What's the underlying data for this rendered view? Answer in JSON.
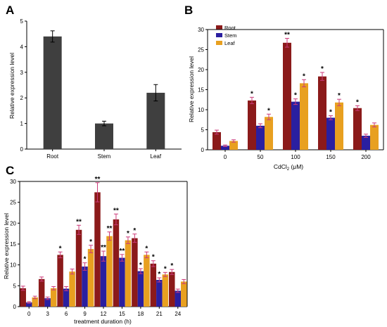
{
  "colors": {
    "root": "#8b1a1a",
    "stem": "#2a1fa0",
    "leaf": "#e8a020",
    "gray": "#3f3f3f",
    "axis": "#000000"
  },
  "chart_data": [
    {
      "panel": "A",
      "type": "bar",
      "categories": [
        "Root",
        "Stem",
        "Leaf"
      ],
      "series": [
        {
          "values": [
            4.4,
            1.0,
            2.2
          ],
          "errors": [
            0.22,
            0.09,
            0.32
          ]
        }
      ],
      "xlabel": "",
      "ylabel": "Relative expression level",
      "ylim": [
        0,
        5
      ],
      "yticks": [
        "0",
        "1",
        "2",
        "3",
        "4",
        "5"
      ],
      "grid": false,
      "legend": "none"
    },
    {
      "panel": "B",
      "type": "bar",
      "categories": [
        "0",
        "50",
        "100",
        "150",
        "200"
      ],
      "series": [
        {
          "name": "Root",
          "values": [
            4.4,
            12.3,
            26.7,
            18.3,
            10.4
          ],
          "errors": [
            0.5,
            0.8,
            1.1,
            1.0,
            0.6
          ],
          "stars": [
            "",
            "*",
            "**",
            "*",
            "*"
          ]
        },
        {
          "name": "Stem",
          "values": [
            1.0,
            6.0,
            12.0,
            8.0,
            3.5
          ],
          "errors": [
            0.2,
            0.5,
            0.7,
            0.5,
            0.4
          ],
          "stars": [
            "",
            "",
            "*",
            "*",
            ""
          ]
        },
        {
          "name": "Leaf",
          "values": [
            2.2,
            8.2,
            16.6,
            11.8,
            6.2
          ],
          "errors": [
            0.3,
            0.7,
            0.9,
            0.8,
            0.5
          ],
          "stars": [
            "",
            "*",
            "*",
            "*",
            ""
          ]
        }
      ],
      "xlabel": "CdCl",
      "xlabel_sub": "2",
      "xlabel_unit": " (μM)",
      "ylabel": "Relative expression level",
      "ylim": [
        0,
        30
      ],
      "yticks": [
        "0",
        "5",
        "10",
        "15",
        "20",
        "25",
        "30"
      ],
      "grid": false,
      "legend": "top-left"
    },
    {
      "panel": "C",
      "type": "bar",
      "categories": [
        "0",
        "3",
        "6",
        "9",
        "12",
        "15",
        "18",
        "21",
        "24"
      ],
      "series": [
        {
          "name": "Root",
          "values": [
            4.4,
            6.6,
            12.4,
            18.4,
            27.4,
            20.9,
            16.4,
            10.3,
            8.3
          ],
          "errors": [
            0.5,
            0.5,
            0.7,
            1.1,
            2.3,
            1.3,
            1.0,
            0.7,
            0.6
          ],
          "stars": [
            "",
            "",
            "*",
            "**",
            "**",
            "**",
            "*",
            "*",
            "*"
          ]
        },
        {
          "name": "Stem",
          "values": [
            1.0,
            2.0,
            4.3,
            9.6,
            12.1,
            11.7,
            8.5,
            6.4,
            3.8
          ],
          "errors": [
            0.2,
            0.3,
            0.5,
            0.9,
            1.2,
            0.8,
            0.6,
            0.5,
            0.4
          ],
          "stars": [
            "",
            "",
            "",
            "*",
            "**",
            "**",
            "*",
            "*",
            ""
          ]
        },
        {
          "name": "Leaf",
          "values": [
            2.2,
            4.4,
            8.4,
            13.8,
            16.9,
            15.9,
            12.4,
            7.7,
            6.0
          ],
          "errors": [
            0.3,
            0.4,
            0.6,
            0.9,
            1.0,
            0.8,
            0.7,
            0.5,
            0.5
          ],
          "stars": [
            "",
            "",
            "",
            "*",
            "**",
            "*",
            "*",
            "*",
            ""
          ]
        }
      ],
      "xlabel": "treatment duration (h)",
      "ylabel": "Relative expression level",
      "ylim": [
        0,
        30
      ],
      "yticks": [
        "0",
        "5",
        "10",
        "15",
        "20",
        "25",
        "30"
      ],
      "grid": false,
      "legend": "none"
    }
  ]
}
